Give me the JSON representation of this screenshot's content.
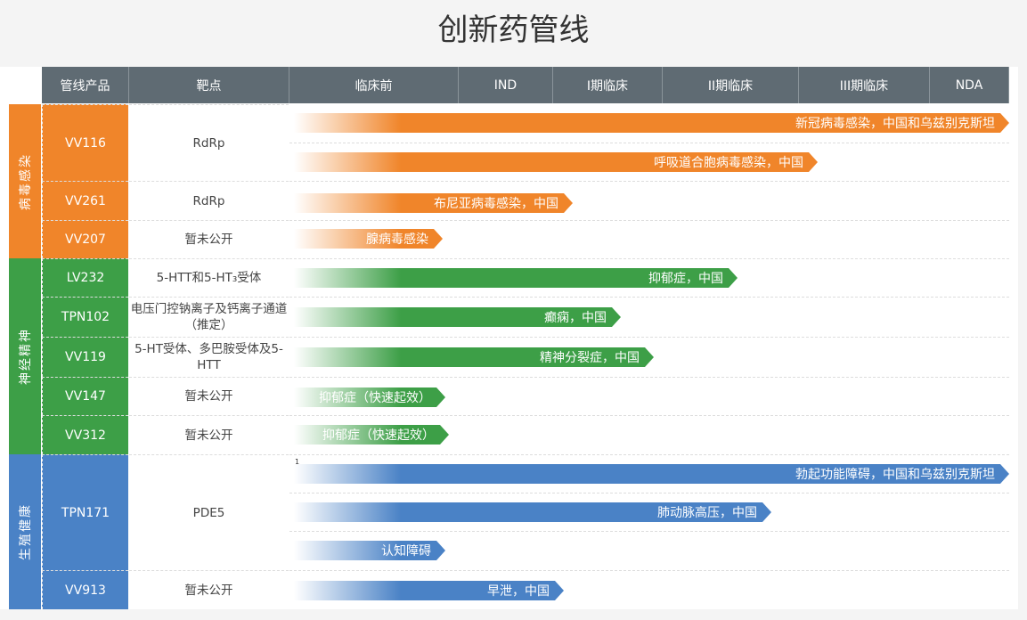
{
  "title": "创新药管线",
  "headers": [
    "管线产品",
    "靶点",
    "临床前",
    "IND",
    "I期临床",
    "II期临床",
    "III期临床",
    "NDA"
  ],
  "colors": {
    "header": "#5f6b73",
    "virus": "#f0852a",
    "neuro": "#3d9f47",
    "repro": "#4a82c6"
  },
  "categories": [
    {
      "name": "病毒感染",
      "color": "#f0852a"
    },
    {
      "name": "神经精神",
      "color": "#3d9f47"
    },
    {
      "name": "生殖健康",
      "color": "#4a82c6"
    }
  ],
  "products": [
    {
      "name": "VV116",
      "target": "RdRp",
      "indications": [
        "新冠病毒感染，中国和乌兹别克斯坦",
        "呼吸道合胞病毒感染，中国"
      ]
    },
    {
      "name": "VV261",
      "target": "RdRp",
      "indications": [
        "布尼亚病毒感染，中国"
      ]
    },
    {
      "name": "VV207",
      "target": "暂未公开",
      "indications": [
        "腺病毒感染"
      ]
    },
    {
      "name": "LV232",
      "target": "5-HTT和5-HT₃受体",
      "indications": [
        "抑郁症，中国"
      ]
    },
    {
      "name": "TPN102",
      "target": "电压门控钠离子及钙离子通道（推定）",
      "indications": [
        "癫痫，中国"
      ]
    },
    {
      "name": "VV119",
      "target": "5-HT受体、多巴胺受体及5-HTT",
      "indications": [
        "精神分裂症，中国"
      ]
    },
    {
      "name": "VV147",
      "target": "暂未公开",
      "indications": [
        "抑郁症（快速起效）"
      ]
    },
    {
      "name": "VV312",
      "target": "暂未公开",
      "indications": [
        "抑郁症（快速起效）"
      ]
    },
    {
      "name": "TPN171",
      "target": "PDE5",
      "indications": [
        "勃起功能障碍，中国和乌兹别克斯坦",
        "肺动脉高压，中国",
        "认知障碍"
      ]
    },
    {
      "name": "VV913",
      "target": "暂未公开",
      "indications": [
        "早泄，中国"
      ]
    }
  ],
  "footnote_mark": "1"
}
